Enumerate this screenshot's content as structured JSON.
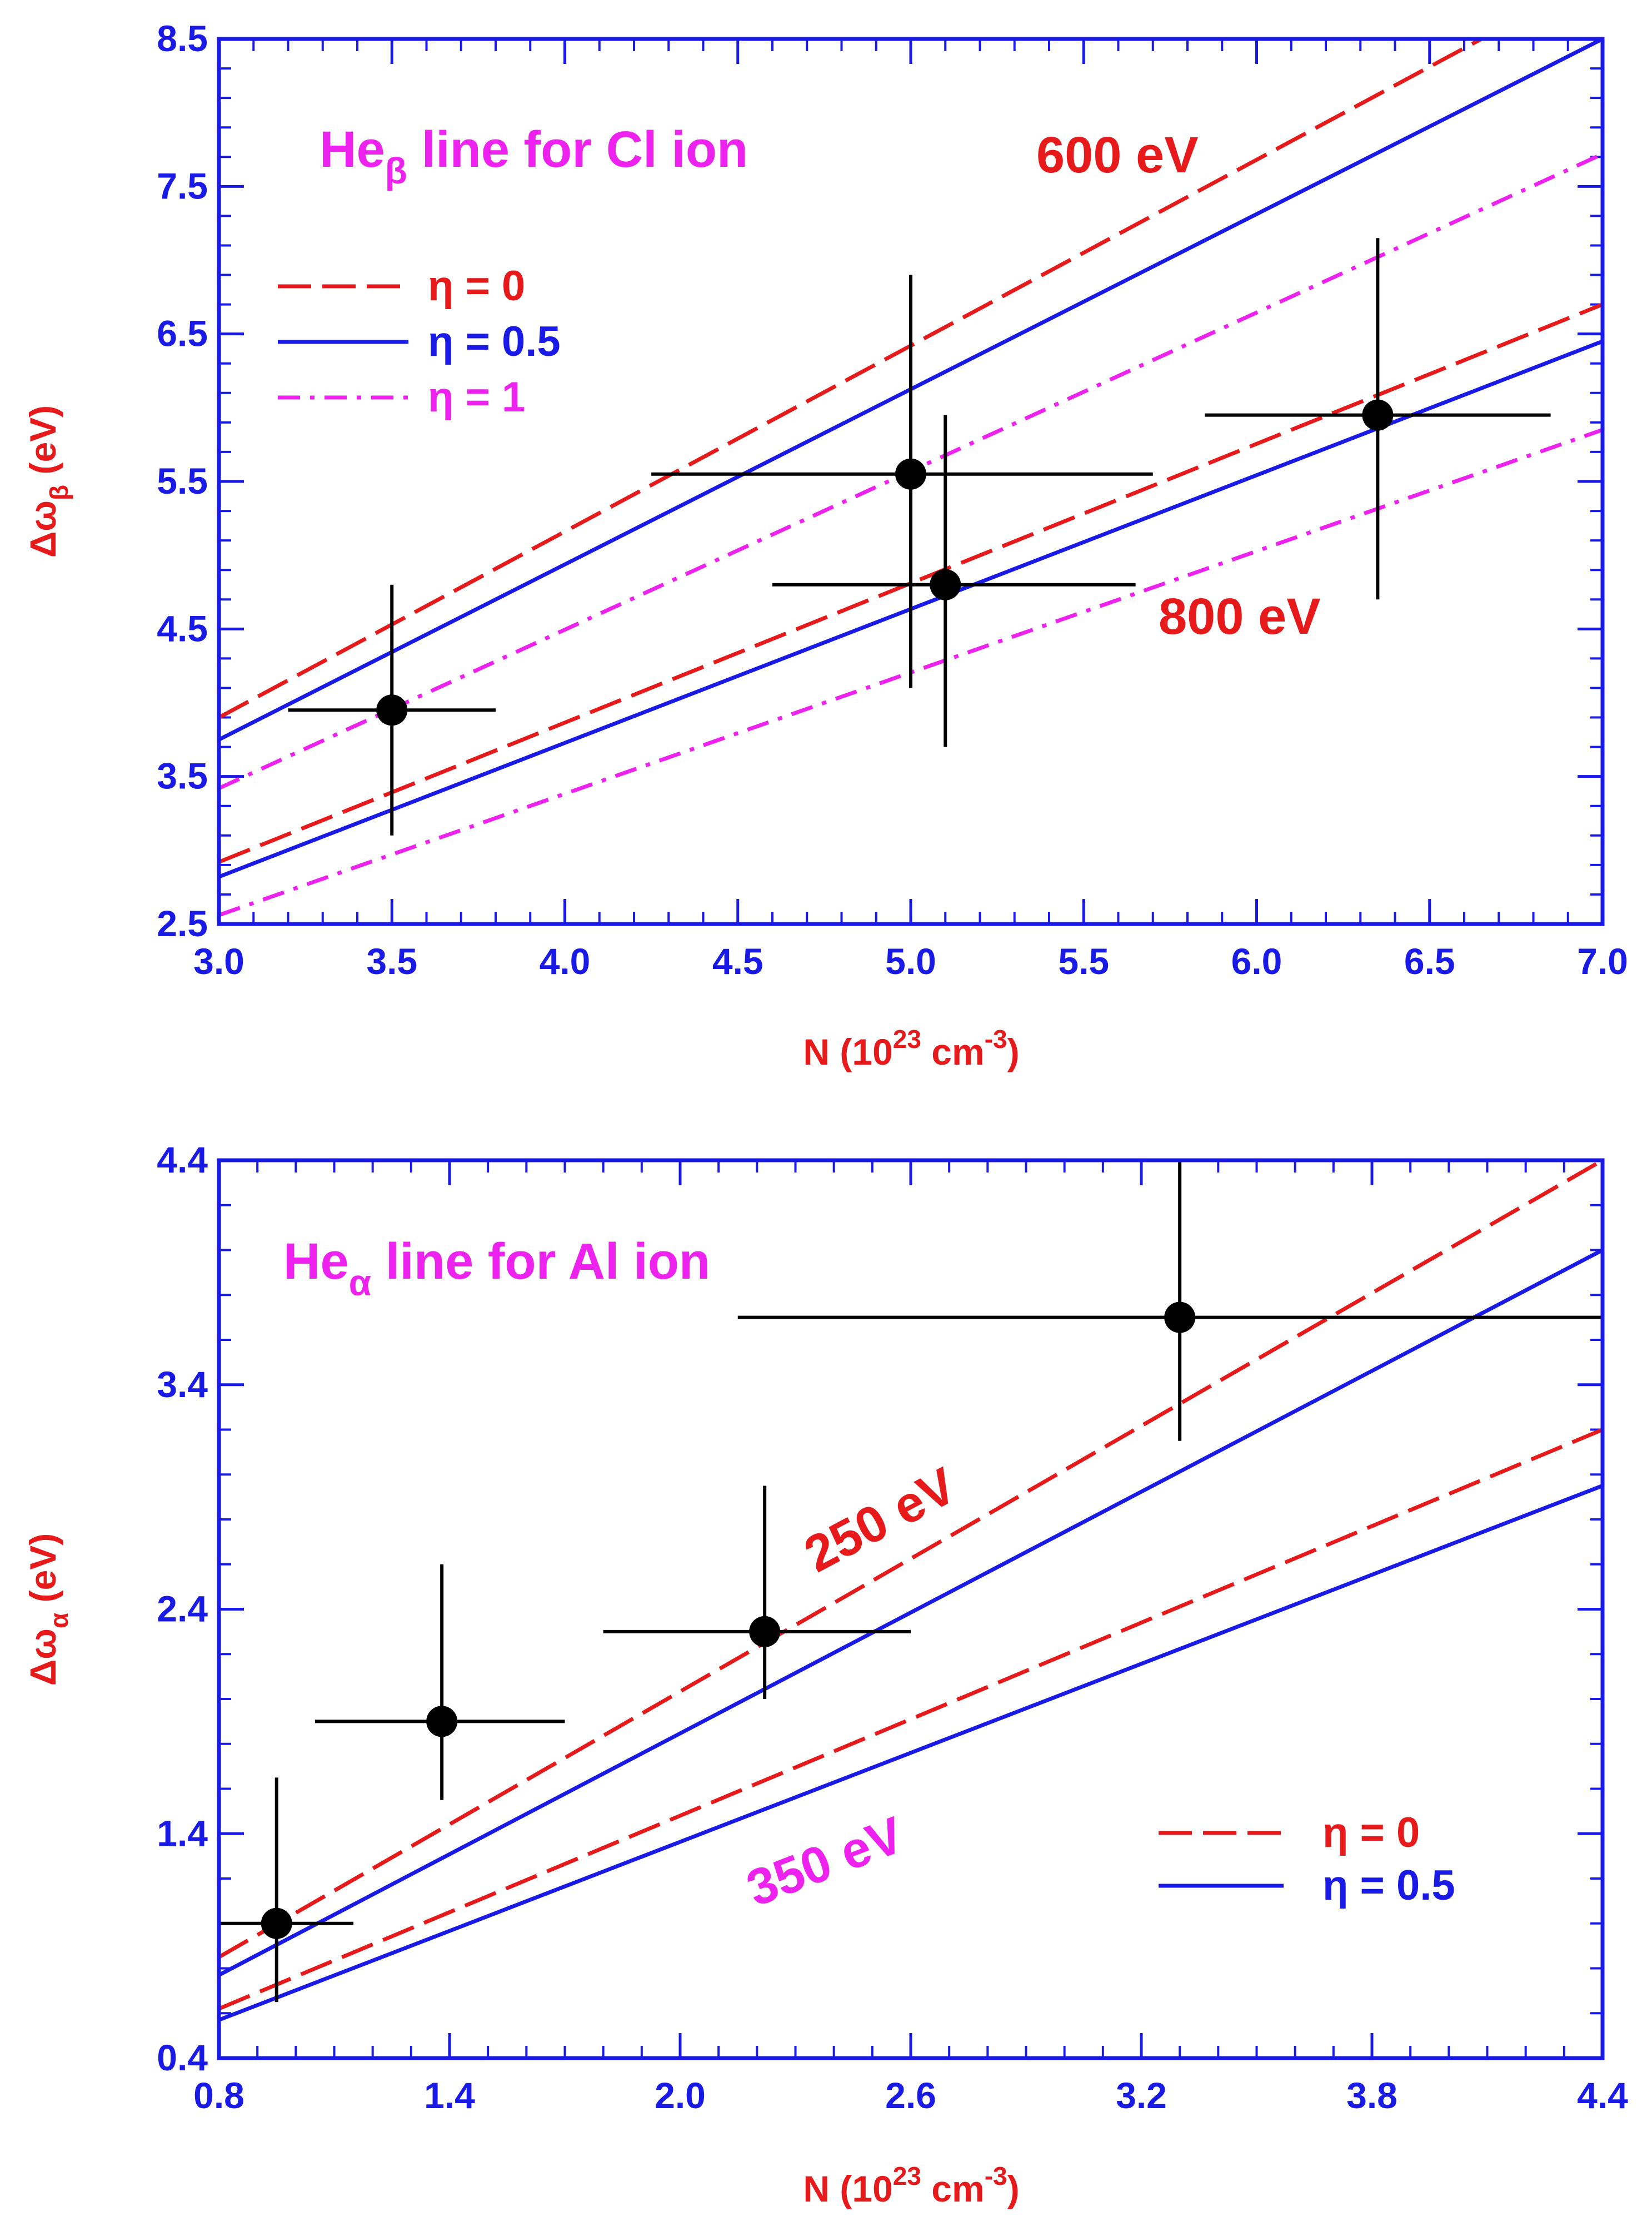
{
  "colors": {
    "axis": "#1a1ae6",
    "red": "#e61a1a",
    "blue": "#1a1ae6",
    "magenta": "#ee22ee",
    "black": "#000000"
  },
  "chart_data": [
    {
      "type": "line",
      "title": "Heβ line for Cl ion",
      "title_main": "He",
      "title_sub": "β",
      "title_rest": " line for Cl ion",
      "title_color": "#ee22ee",
      "xlabel": "N (10",
      "xlabel_sup": "23",
      "xlabel_unit": " cm",
      "xlabel_unit_sup": "-3",
      "xlabel_end": ")",
      "ylabel_main": "Δω",
      "ylabel_sub": "β",
      "ylabel_rest": " (eV)",
      "xlim": [
        3.0,
        7.0
      ],
      "ylim": [
        2.5,
        8.5
      ],
      "xticks": [
        "3.0",
        "3.5",
        "4.0",
        "4.5",
        "5.0",
        "5.5",
        "6.0",
        "6.5",
        "7.0"
      ],
      "yticks": [
        "2.5",
        "3.5",
        "4.5",
        "5.5",
        "6.5",
        "7.5",
        "8.5"
      ],
      "x_minor_step": 0.1,
      "y_minor_step": 0.2,
      "legend": [
        {
          "label": "η = 0",
          "style": "dash",
          "color": "#e61a1a"
        },
        {
          "label": "η = 0.5",
          "style": "solid",
          "color": "#1a1ae6"
        },
        {
          "label": "η = 1",
          "style": "dashdot",
          "color": "#ee22ee"
        }
      ],
      "annotations": [
        {
          "text": "600 eV",
          "color": "#e61a1a",
          "x": 5.95,
          "y": 7.7,
          "angle": 0
        },
        {
          "text": "800 eV",
          "color": "#e61a1a",
          "x": 5.75,
          "y": 4.4,
          "angle": 0
        }
      ],
      "series": [
        {
          "name": "600 eV, η = 0",
          "style": "dash",
          "color": "#e61a1a",
          "x": [
            3.0,
            6.65
          ],
          "y": [
            3.9,
            8.5
          ]
        },
        {
          "name": "600 eV, η = 0.5",
          "style": "solid",
          "color": "#1a1ae6",
          "x": [
            3.0,
            7.0
          ],
          "y": [
            3.75,
            8.5
          ]
        },
        {
          "name": "600 eV, η = 1",
          "style": "dashdot",
          "color": "#ee22ee",
          "x": [
            3.0,
            7.0
          ],
          "y": [
            3.42,
            7.72
          ]
        },
        {
          "name": "800 eV, η = 0",
          "style": "dash",
          "color": "#e61a1a",
          "x": [
            3.0,
            7.0
          ],
          "y": [
            2.92,
            6.7
          ]
        },
        {
          "name": "800 eV, η = 0.5",
          "style": "solid",
          "color": "#1a1ae6",
          "x": [
            3.0,
            7.0
          ],
          "y": [
            2.82,
            6.45
          ]
        },
        {
          "name": "800 eV, η = 1",
          "style": "dashdot",
          "color": "#ee22ee",
          "x": [
            3.0,
            7.0
          ],
          "y": [
            2.56,
            5.85
          ]
        }
      ],
      "points": [
        {
          "x": 3.5,
          "y": 3.95,
          "xerr": [
            3.2,
            3.8
          ],
          "yerr": [
            3.1,
            4.8
          ]
        },
        {
          "x": 5.0,
          "y": 5.55,
          "xerr": [
            4.25,
            5.7
          ],
          "yerr": [
            4.1,
            6.9
          ]
        },
        {
          "x": 5.1,
          "y": 4.8,
          "xerr": [
            4.6,
            5.65
          ],
          "yerr": [
            3.7,
            5.95
          ]
        },
        {
          "x": 6.35,
          "y": 5.95,
          "xerr": [
            5.85,
            6.85
          ],
          "yerr": [
            4.7,
            7.15
          ]
        }
      ]
    },
    {
      "type": "line",
      "title": "Heα line for Al ion",
      "title_main": "He",
      "title_sub": "α",
      "title_rest": " line for Al ion",
      "title_color": "#ee22ee",
      "xlabel": "N (10",
      "xlabel_sup": "23",
      "xlabel_unit": " cm",
      "xlabel_unit_sup": "-3",
      "xlabel_end": ")",
      "ylabel_main": "Δω",
      "ylabel_sub": "α",
      "ylabel_rest": " (eV)",
      "xlim": [
        0.8,
        4.4
      ],
      "ylim": [
        0.4,
        4.4
      ],
      "xticks": [
        "0.8",
        "1.4",
        "2.0",
        "2.6",
        "3.2",
        "3.8",
        "4.4"
      ],
      "yticks": [
        "0.4",
        "1.4",
        "2.4",
        "3.4",
        "4.4"
      ],
      "x_minor_step": 0.1,
      "y_minor_step": 0.2,
      "legend": [
        {
          "label": "η = 0",
          "style": "dash",
          "color": "#e61a1a"
        },
        {
          "label": "η = 0.5",
          "style": "solid",
          "color": "#1a1ae6"
        }
      ],
      "annotations": [
        {
          "text": "250 eV",
          "color": "#e61a1a",
          "x": 2.35,
          "y": 2.7,
          "angle": -28
        },
        {
          "text": "350 eV",
          "color": "#ee22ee",
          "x": 2.15,
          "y": 1.05,
          "angle": -21
        }
      ],
      "series": [
        {
          "name": "250 eV, η = 0",
          "style": "dash",
          "color": "#e61a1a",
          "x": [
            0.8,
            4.4
          ],
          "y": [
            0.85,
            4.4
          ]
        },
        {
          "name": "250 eV, η = 0.5",
          "style": "solid",
          "color": "#1a1ae6",
          "x": [
            0.8,
            4.4
          ],
          "y": [
            0.77,
            4.0
          ]
        },
        {
          "name": "350 eV, η = 0",
          "style": "dash",
          "color": "#e61a1a",
          "x": [
            0.8,
            4.4
          ],
          "y": [
            0.62,
            3.2
          ]
        },
        {
          "name": "350 eV, η = 0.5",
          "style": "solid",
          "color": "#1a1ae6",
          "x": [
            0.8,
            4.4
          ],
          "y": [
            0.57,
            2.95
          ]
        }
      ],
      "points": [
        {
          "x": 0.95,
          "y": 1.0,
          "xerr": [
            0.8,
            1.15
          ],
          "yerr": [
            0.65,
            1.65
          ]
        },
        {
          "x": 1.38,
          "y": 1.9,
          "xerr": [
            1.05,
            1.7
          ],
          "yerr": [
            1.55,
            2.6
          ]
        },
        {
          "x": 2.22,
          "y": 2.3,
          "xerr": [
            1.8,
            2.6
          ],
          "yerr": [
            2.0,
            2.95
          ]
        },
        {
          "x": 3.3,
          "y": 3.7,
          "xerr": [
            2.15,
            4.4
          ],
          "yerr": [
            3.15,
            4.4
          ]
        }
      ]
    }
  ]
}
